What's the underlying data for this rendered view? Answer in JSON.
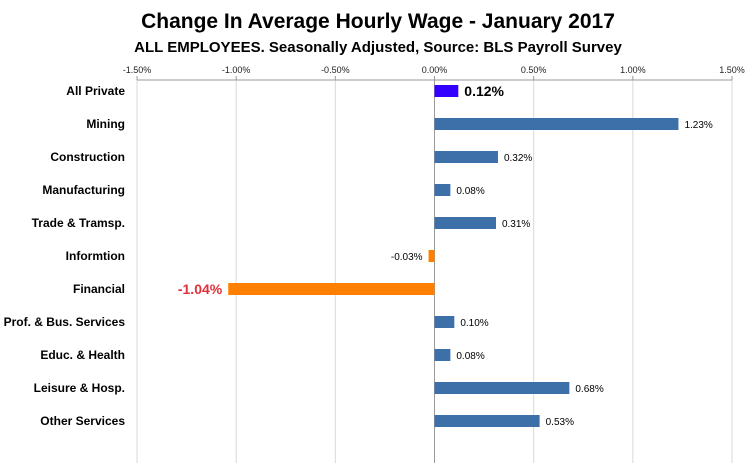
{
  "chart_data": {
    "type": "bar",
    "orientation": "horizontal",
    "title": "Change In Average Hourly Wage - January 2017",
    "subtitle": "ALL EMPLOYEES. Seasonally Adjusted, Source: BLS Payroll Survey",
    "categories": [
      "All Private",
      "Mining",
      "Construction",
      "Manufacturing",
      "Trade & Tramsp.",
      "Informtion",
      "Financial",
      "Prof. & Bus. Services",
      "Educ. & Health",
      "Leisure &  Hosp.",
      "Other Services"
    ],
    "values": [
      0.12,
      1.23,
      0.32,
      0.08,
      0.31,
      -0.03,
      -1.04,
      0.1,
      0.08,
      0.68,
      0.53
    ],
    "value_labels": [
      "0.12%",
      "1.23%",
      "0.32%",
      "0.08%",
      "0.31%",
      "-0.03%",
      "-1.04%",
      "0.10%",
      "0.08%",
      "0.68%",
      "0.53%"
    ],
    "bar_colors": [
      "#3300ff",
      "#3d6fa8",
      "#3d6fa8",
      "#3d6fa8",
      "#3d6fa8",
      "#ff8000",
      "#ff8000",
      "#3d6fa8",
      "#3d6fa8",
      "#3d6fa8",
      "#3d6fa8"
    ],
    "emphasized_labels": [
      0,
      6
    ],
    "emphasized_label_colors": [
      "#000000",
      "#e0303a"
    ],
    "xlim": [
      -1.5,
      1.5
    ],
    "xticks": [
      -1.5,
      -1.0,
      -0.5,
      0.0,
      0.5,
      1.0,
      1.5
    ],
    "xtick_labels": [
      "-1.50%",
      "-1.00%",
      "-0.50%",
      "0.00%",
      "0.50%",
      "1.00%",
      "1.50%"
    ],
    "x_axis_position": "top",
    "grid": true,
    "legend": "none"
  }
}
